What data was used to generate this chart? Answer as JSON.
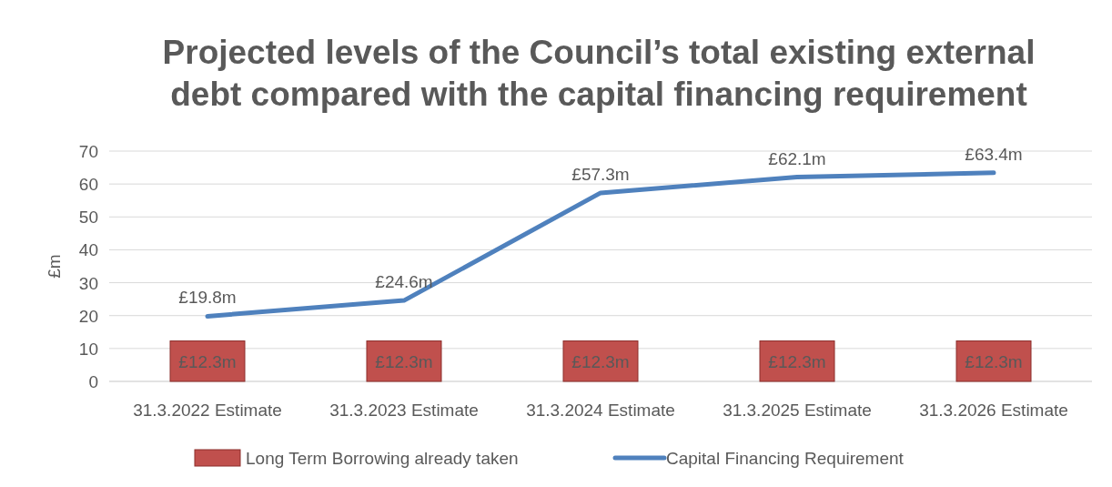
{
  "chart_data": {
    "type": "bar",
    "title": "Projected levels of the Council’s total existing external debt compared with the capital financing requirement",
    "ylabel": "£m",
    "categories": [
      "31.3.2022 Estimate",
      "31.3.2023 Estimate",
      "31.3.2024 Estimate",
      "31.3.2025 Estimate",
      "31.3.2026 Estimate"
    ],
    "series": [
      {
        "name": "Long Term Borrowing already taken",
        "color": "#c0504d",
        "values": [
          12.3,
          12.3,
          12.3,
          12.3,
          12.3
        ],
        "value_labels": [
          "£12.3m",
          "£12.3m",
          "£12.3m",
          "£12.3m",
          "£12.3m"
        ]
      },
      {
        "name": "Capital Financing Requirement",
        "type": "line",
        "color": "#4f81bd",
        "values": [
          19.8,
          24.6,
          57.3,
          62.1,
          63.4
        ],
        "value_labels": [
          "£19.8m",
          "£24.6m",
          "£57.3m",
          "£62.1m",
          "£63.4m"
        ]
      }
    ],
    "ylim": [
      0,
      70
    ],
    "yticks": [
      0,
      10,
      20,
      30,
      40,
      50,
      60,
      70
    ],
    "grid": "y",
    "legend": "bottom",
    "marker": "none",
    "line_style": "solid"
  }
}
